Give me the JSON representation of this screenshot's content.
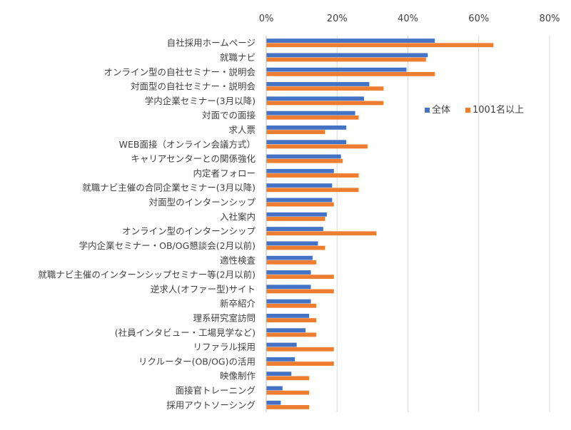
{
  "chart_data": {
    "type": "bar",
    "orientation": "horizontal",
    "categories": [
      "自社採用ホームページ",
      "就職ナビ",
      "オンライン型の自社セミナー・説明会",
      "対面型の自社セミナー・説明会",
      "学内企業セミナー(3月以降)",
      "対面での面接",
      "求人票",
      "WEB面接（オンライン会議方式）",
      "キャリアセンターとの関係強化",
      "内定者フォロー",
      "就職ナビ主催の合同企業セミナー(3月以降)",
      "対面型のインターンシップ",
      "入社案内",
      "オンライン型のインターンシップ",
      "学内企業セミナー・OB/OG懇談会(2月以前)",
      "適性検査",
      "就職ナビ主催のインターンシップセミナー等(2月以前)",
      "逆求人(オファー型)サイト",
      "新卒紹介",
      "理系研究室訪問",
      "(社員インタビュー・工場見学など)",
      "リファラル採用",
      "リクルーター(OB/OG)の活用",
      "映像制作",
      "面接官トレーニング",
      "採用アウトソーシング"
    ],
    "series": [
      {
        "name": "全体",
        "color": "#4472c4",
        "values": [
          47.5,
          45.5,
          39.5,
          29.0,
          27.5,
          25.0,
          22.5,
          22.5,
          21.0,
          19.0,
          18.5,
          18.5,
          17.0,
          16.0,
          14.5,
          13.0,
          12.5,
          12.5,
          12.5,
          12.0,
          11.0,
          8.5,
          8.0,
          7.0,
          4.5,
          4.0
        ]
      },
      {
        "name": "1001名以上",
        "color": "#ed7d31",
        "values": [
          64.0,
          45.0,
          47.5,
          33.0,
          33.0,
          26.0,
          16.5,
          28.5,
          21.5,
          26.0,
          26.0,
          19.0,
          16.5,
          31.0,
          16.5,
          14.0,
          19.0,
          19.0,
          14.0,
          14.0,
          14.0,
          19.0,
          19.0,
          12.0,
          12.0,
          12.0
        ]
      }
    ],
    "xlim": [
      0,
      80
    ],
    "xticks": [
      "0%",
      "20%",
      "40%",
      "60%",
      "80%"
    ],
    "xtick_values": [
      0,
      20,
      40,
      60,
      80
    ],
    "grid": true,
    "legend_position": "right"
  }
}
